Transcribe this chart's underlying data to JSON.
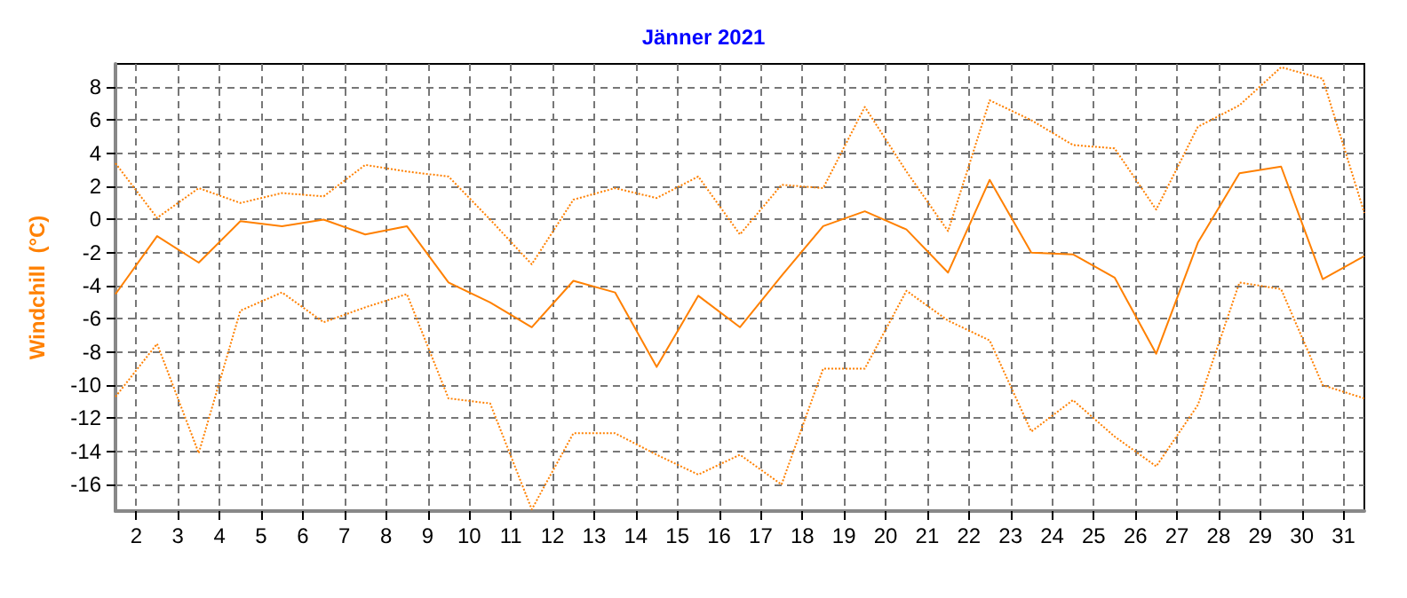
{
  "chart_data": {
    "type": "line",
    "title": "Jänner 2021",
    "ylabel": "Windchill  (°C)",
    "x": [
      1.5,
      2.5,
      3.5,
      4.5,
      5.5,
      6.5,
      7.5,
      8.5,
      9.5,
      10.5,
      11.5,
      12.5,
      13.5,
      14.5,
      15.5,
      16.5,
      17.5,
      18.5,
      19.5,
      20.5,
      21.5,
      22.5,
      23.5,
      24.5,
      25.5,
      26.5,
      27.5,
      28.5,
      29.5,
      30.5,
      31.5
    ],
    "series": [
      {
        "color": "#ff8000",
        "line_style": "dotted",
        "values": [
          3.4,
          0.1,
          1.9,
          1.0,
          1.6,
          1.4,
          3.3,
          2.9,
          2.6,
          0.0,
          -2.7,
          1.2,
          1.9,
          1.3,
          2.6,
          -0.9,
          2.1,
          1.9,
          6.8,
          2.9,
          -0.7,
          7.2,
          6.0,
          4.5,
          4.3,
          0.6,
          5.6,
          6.9,
          9.2,
          8.5,
          0.4
        ]
      },
      {
        "color": "#ff8000",
        "line_style": "solid",
        "values": [
          -4.5,
          -1.0,
          -2.6,
          -0.1,
          -0.4,
          0.0,
          -0.9,
          -0.4,
          -3.8,
          -5.0,
          -6.5,
          -3.7,
          -4.4,
          -8.9,
          -4.6,
          -6.5,
          -3.4,
          -0.4,
          0.5,
          -0.6,
          -3.2,
          2.4,
          -2.0,
          -2.1,
          -3.5,
          -8.1,
          -1.4,
          2.8,
          3.2,
          -3.6,
          -2.2
        ]
      },
      {
        "color": "#ff8000",
        "line_style": "dotted",
        "values": [
          -10.7,
          -7.5,
          -14.1,
          -5.5,
          -4.4,
          -6.2,
          -5.3,
          -4.5,
          -10.8,
          -11.1,
          -17.5,
          -12.9,
          -12.9,
          -14.2,
          -15.4,
          -14.2,
          -16.0,
          -9.0,
          -9.0,
          -4.3,
          -6.1,
          -7.3,
          -12.8,
          -10.9,
          -13.1,
          -14.9,
          -11.2,
          -3.8,
          -4.2,
          -10.0,
          -10.8
        ]
      }
    ],
    "xlim": [
      1.5,
      31.5
    ],
    "xticks": [
      2,
      3,
      4,
      5,
      6,
      7,
      8,
      9,
      10,
      11,
      12,
      13,
      14,
      15,
      16,
      17,
      18,
      19,
      20,
      21,
      22,
      23,
      24,
      25,
      26,
      27,
      28,
      29,
      30,
      31
    ],
    "ylim": [
      -17.6,
      9.4
    ],
    "yticks": [
      -16,
      -14,
      -12,
      -10,
      -8,
      -6,
      -4,
      -2,
      0,
      2,
      4,
      6,
      8
    ],
    "grid": true,
    "marker": "none"
  }
}
